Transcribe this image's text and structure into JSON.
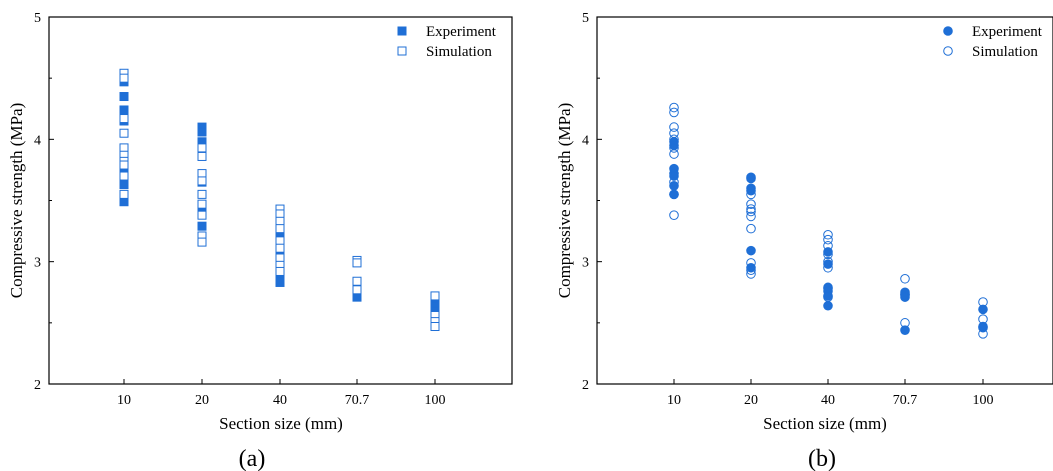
{
  "colors": {
    "series": "#1f6fd6",
    "axis": "#000000"
  },
  "chart_data": [
    {
      "type": "scatter",
      "panel_label": "(a)",
      "marker": "square",
      "xlabel": "Section size (mm)",
      "ylabel": "Compressive strength (MPa)",
      "categories": [
        "10",
        "20",
        "40",
        "70.7",
        "100"
      ],
      "ylim": [
        2,
        5
      ],
      "yticks": [
        "2",
        "3",
        "4",
        "5"
      ],
      "legend": {
        "position": "top-right",
        "experiment_label": "Experiment",
        "simulation_label": "Simulation"
      },
      "series": [
        {
          "name": "Experiment",
          "filled": true,
          "points": [
            [
              0,
              4.47
            ],
            [
              0,
              4.35
            ],
            [
              0,
              4.24
            ],
            [
              0,
              4.15
            ],
            [
              0,
              3.74
            ],
            [
              0,
              3.63
            ],
            [
              0,
              3.49
            ],
            [
              1,
              4.1
            ],
            [
              1,
              4.06
            ],
            [
              1,
              3.98
            ],
            [
              1,
              3.65
            ],
            [
              1,
              3.45
            ],
            [
              1,
              3.43
            ],
            [
              1,
              3.29
            ],
            [
              2,
              3.24
            ],
            [
              2,
              3.05
            ],
            [
              2,
              2.9
            ],
            [
              2,
              2.84
            ],
            [
              2,
              2.83
            ],
            [
              3,
              2.8
            ],
            [
              3,
              2.72
            ],
            [
              3,
              2.71
            ],
            [
              4,
              2.71
            ],
            [
              4,
              2.64
            ],
            [
              4,
              2.6
            ]
          ]
        },
        {
          "name": "Simulation",
          "filled": false,
          "points": [
            [
              0,
              4.54
            ],
            [
              0,
              4.5
            ],
            [
              0,
              4.17
            ],
            [
              0,
              4.05
            ],
            [
              0,
              3.93
            ],
            [
              0,
              3.87
            ],
            [
              0,
              3.82
            ],
            [
              0,
              3.79
            ],
            [
              0,
              3.7
            ],
            [
              0,
              3.55
            ],
            [
              1,
              3.93
            ],
            [
              1,
              3.86
            ],
            [
              1,
              3.72
            ],
            [
              1,
              3.66
            ],
            [
              1,
              3.55
            ],
            [
              1,
              3.47
            ],
            [
              1,
              3.38
            ],
            [
              1,
              3.21
            ],
            [
              1,
              3.16
            ],
            [
              2,
              3.43
            ],
            [
              2,
              3.39
            ],
            [
              2,
              3.33
            ],
            [
              2,
              3.27
            ],
            [
              2,
              3.17
            ],
            [
              2,
              3.11
            ],
            [
              2,
              3.03
            ],
            [
              2,
              2.97
            ],
            [
              2,
              2.92
            ],
            [
              3,
              3.01
            ],
            [
              3,
              2.99
            ],
            [
              3,
              2.84
            ],
            [
              3,
              2.77
            ],
            [
              4,
              2.72
            ],
            [
              4,
              2.56
            ],
            [
              4,
              2.51
            ],
            [
              4,
              2.47
            ]
          ]
        }
      ]
    },
    {
      "type": "scatter",
      "panel_label": "(b)",
      "marker": "circle",
      "xlabel": "Section size (mm)",
      "ylabel": "Compressive strength (MPa)",
      "categories": [
        "10",
        "20",
        "40",
        "70.7",
        "100"
      ],
      "ylim": [
        2,
        5
      ],
      "yticks": [
        "2",
        "3",
        "4",
        "5"
      ],
      "legend": {
        "position": "top-right",
        "experiment_label": "Experiment",
        "simulation_label": "Simulation"
      },
      "series": [
        {
          "name": "Experiment",
          "filled": true,
          "points": [
            [
              0,
              3.98
            ],
            [
              0,
              3.95
            ],
            [
              0,
              3.76
            ],
            [
              0,
              3.72
            ],
            [
              0,
              3.7
            ],
            [
              0,
              3.62
            ],
            [
              0,
              3.55
            ],
            [
              1,
              3.69
            ],
            [
              1,
              3.68
            ],
            [
              1,
              3.6
            ],
            [
              1,
              3.58
            ],
            [
              1,
              3.09
            ],
            [
              1,
              2.95
            ],
            [
              2,
              3.08
            ],
            [
              2,
              2.98
            ],
            [
              2,
              2.79
            ],
            [
              2,
              2.76
            ],
            [
              2,
              2.72
            ],
            [
              2,
              2.64
            ],
            [
              3,
              2.75
            ],
            [
              3,
              2.73
            ],
            [
              3,
              2.71
            ],
            [
              3,
              2.44
            ],
            [
              4,
              2.61
            ],
            [
              4,
              2.47
            ],
            [
              4,
              2.46
            ]
          ]
        },
        {
          "name": "Simulation",
          "filled": false,
          "points": [
            [
              0,
              4.26
            ],
            [
              0,
              4.22
            ],
            [
              0,
              4.1
            ],
            [
              0,
              4.05
            ],
            [
              0,
              4.0
            ],
            [
              0,
              3.93
            ],
            [
              0,
              3.88
            ],
            [
              0,
              3.65
            ],
            [
              0,
              3.55
            ],
            [
              0,
              3.38
            ],
            [
              1,
              3.55
            ],
            [
              1,
              3.47
            ],
            [
              1,
              3.43
            ],
            [
              1,
              3.41
            ],
            [
              1,
              3.37
            ],
            [
              1,
              3.27
            ],
            [
              1,
              2.99
            ],
            [
              1,
              2.93
            ],
            [
              1,
              2.9
            ],
            [
              2,
              3.22
            ],
            [
              2,
              3.18
            ],
            [
              2,
              3.13
            ],
            [
              2,
              3.06
            ],
            [
              2,
              3.0
            ],
            [
              2,
              2.95
            ],
            [
              2,
              2.78
            ],
            [
              2,
              2.71
            ],
            [
              3,
              2.86
            ],
            [
              3,
              2.73
            ],
            [
              3,
              2.5
            ],
            [
              4,
              2.67
            ],
            [
              4,
              2.53
            ],
            [
              4,
              2.41
            ]
          ]
        }
      ]
    }
  ]
}
